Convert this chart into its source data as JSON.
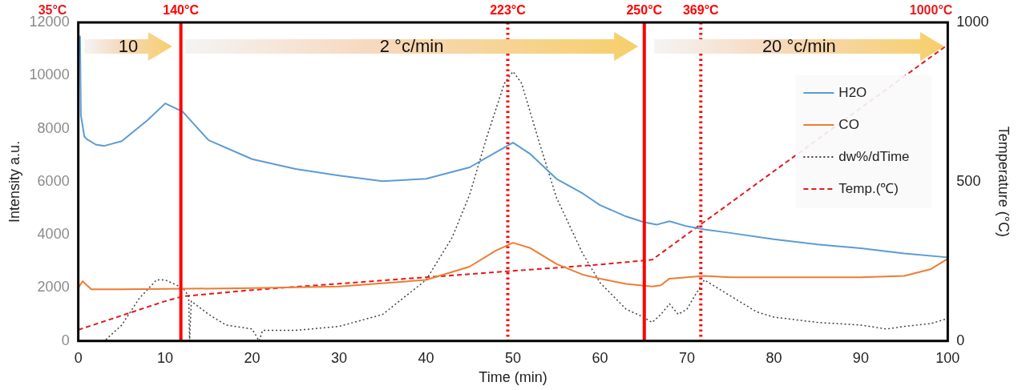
{
  "chart_data": {
    "type": "line",
    "xlabel": "Time (min)",
    "ylabel": "Intensity a.u.",
    "y2label": "Temperature (°C)",
    "xlim": [
      0,
      100
    ],
    "xticks": [
      0,
      10,
      20,
      30,
      40,
      50,
      60,
      70,
      80,
      90,
      100
    ],
    "ylim": [
      0,
      12000
    ],
    "yticks": [
      0,
      2000,
      4000,
      6000,
      8000,
      10000,
      12000
    ],
    "y2lim": [
      0,
      1000
    ],
    "y2ticks": [
      0,
      500,
      1000
    ],
    "grid": false,
    "legend": "top right",
    "marker": "none",
    "series": [
      {
        "name": "H2O",
        "color": "#5b9bd5",
        "line_style": "solid",
        "x": [
          0.2,
          0.3,
          0.7,
          1,
          2,
          3,
          5,
          8,
          10,
          12,
          15,
          20,
          25,
          30,
          35,
          40,
          45,
          48,
          50,
          52,
          55,
          58,
          60,
          63,
          65,
          66.5,
          68,
          70,
          72,
          75,
          80,
          85,
          90,
          95,
          100
        ],
        "values": [
          11500,
          8500,
          7700,
          7600,
          7400,
          7350,
          7530,
          8330,
          8950,
          8640,
          7560,
          6850,
          6480,
          6230,
          6020,
          6110,
          6540,
          7100,
          7470,
          7040,
          6110,
          5560,
          5120,
          4690,
          4480,
          4380,
          4510,
          4320,
          4200,
          4070,
          3830,
          3640,
          3490,
          3300,
          3150
        ]
      },
      {
        "name": "CO",
        "color": "#ed7d31",
        "line_style": "solid",
        "x": [
          0,
          0.5,
          1.5,
          5,
          10,
          20,
          30,
          40,
          45,
          48,
          50,
          52,
          55,
          58,
          60,
          63,
          66,
          67,
          68,
          70,
          72,
          75,
          80,
          90,
          95,
          98,
          100
        ],
        "values": [
          2000,
          2250,
          1950,
          1950,
          1960,
          1990,
          2050,
          2300,
          2800,
          3400,
          3700,
          3500,
          2900,
          2500,
          2350,
          2150,
          2050,
          2100,
          2350,
          2400,
          2450,
          2400,
          2400,
          2400,
          2450,
          2700,
          3100
        ]
      },
      {
        "name": "dw%/dTime",
        "color": "#404040",
        "line_style": "dotted",
        "x": [
          0,
          3,
          5,
          7,
          9,
          10,
          12,
          12.7,
          12.8,
          13,
          15,
          17,
          20,
          20.8,
          21.2,
          25,
          30,
          35,
          40,
          43,
          45,
          47,
          49,
          50,
          51,
          53,
          55,
          58,
          60,
          63,
          65,
          66,
          67,
          68,
          69,
          70,
          72,
          75,
          78,
          80,
          85,
          90,
          93,
          95,
          98,
          100
        ],
        "values": [
          0,
          0,
          600,
          1600,
          2300,
          2300,
          2000,
          1700,
          0,
          1500,
          1000,
          600,
          450,
          0,
          400,
          400,
          550,
          1000,
          2300,
          3900,
          5500,
          7700,
          9700,
          10150,
          9700,
          7500,
          5400,
          3300,
          2200,
          1200,
          900,
          700,
          1000,
          1400,
          1000,
          1200,
          2300,
          1700,
          1100,
          900,
          700,
          600,
          450,
          550,
          650,
          850
        ]
      },
      {
        "name": "Temp.(℃)",
        "color": "#e31a1c",
        "line_style": "dashed",
        "axis": "y2",
        "x": [
          0,
          5,
          10,
          12,
          20,
          30,
          40,
          50,
          60,
          66,
          100
        ],
        "values": [
          35,
          80,
          125,
          140,
          160,
          180,
          200,
          220,
          240,
          255,
          930
        ]
      }
    ],
    "ref_lines": [
      {
        "axis": "x",
        "value": 11.8,
        "label": "140°C",
        "color": "#ff0000",
        "line_style": "solid"
      },
      {
        "axis": "x",
        "value": 49.4,
        "label": "223°C",
        "color": "#ff0000",
        "line_style": "dotted"
      },
      {
        "axis": "x",
        "value": 65.1,
        "label": "250°C",
        "color": "#ff0000",
        "line_style": "solid"
      },
      {
        "axis": "x",
        "value": 71.6,
        "label": "369°C",
        "color": "#ff0000",
        "line_style": "dotted"
      }
    ],
    "annotations": [
      "10",
      "2 °c/min",
      "20 °c/min",
      "35°C",
      "1000°C"
    ]
  }
}
